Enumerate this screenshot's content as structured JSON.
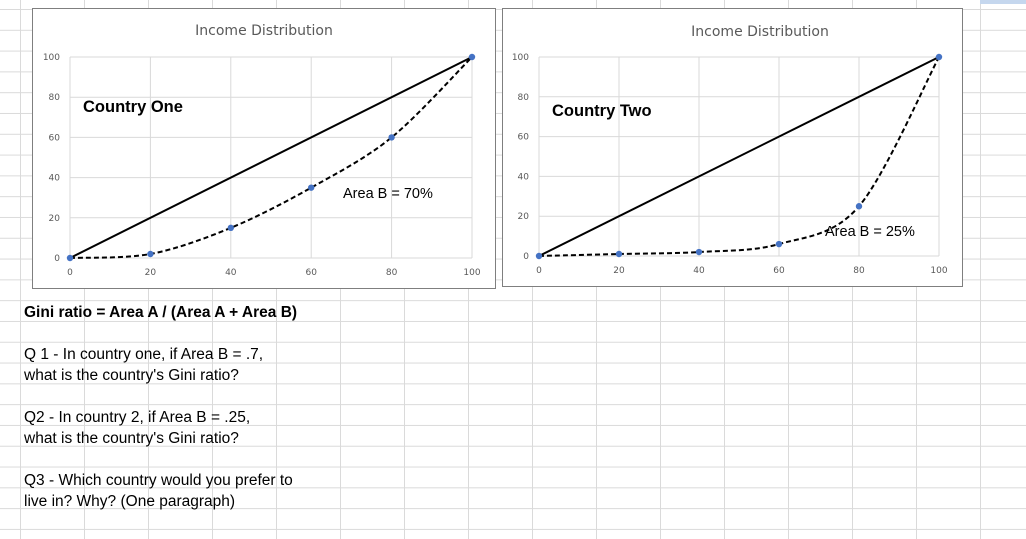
{
  "charts": [
    {
      "title": "Income Distribution",
      "country_label": "Country One",
      "area_label": "Area B = 70%"
    },
    {
      "title": "Income Distribution",
      "country_label": "Country Two",
      "area_label": "Area B = 25%"
    }
  ],
  "chart_data": [
    {
      "type": "line",
      "title": "Income Distribution",
      "x_ticks": [
        0,
        20,
        40,
        60,
        80,
        100
      ],
      "y_ticks": [
        0,
        20,
        40,
        60,
        80,
        100
      ],
      "xlim": [
        0,
        100
      ],
      "ylim": [
        0,
        100
      ],
      "grid": true,
      "series": [
        {
          "style": "solid",
          "color": "#000000",
          "x": [
            0,
            100
          ],
          "y": [
            0,
            100
          ]
        },
        {
          "style": "dashed",
          "color": "#000000",
          "marker_color": "#4472c4",
          "x": [
            0,
            20,
            40,
            60,
            80,
            100
          ],
          "y": [
            0,
            2,
            15,
            35,
            60,
            100
          ]
        }
      ],
      "annotations": [
        "Country One",
        "Area B = 70%"
      ]
    },
    {
      "type": "line",
      "title": "Income Distribution",
      "x_ticks": [
        0,
        20,
        40,
        60,
        80,
        100
      ],
      "y_ticks": [
        0,
        20,
        40,
        60,
        80,
        100
      ],
      "xlim": [
        0,
        100
      ],
      "ylim": [
        0,
        100
      ],
      "grid": true,
      "series": [
        {
          "style": "solid",
          "color": "#000000",
          "x": [
            0,
            100
          ],
          "y": [
            0,
            100
          ]
        },
        {
          "style": "dashed",
          "color": "#000000",
          "marker_color": "#4472c4",
          "x": [
            0,
            20,
            40,
            60,
            80,
            100
          ],
          "y": [
            0,
            1,
            2,
            6,
            25,
            100
          ]
        }
      ],
      "annotations": [
        "Country Two",
        "Area B = 25%"
      ]
    }
  ],
  "questions": {
    "gini": "Gini ratio = Area A / (Area A + Area B)",
    "q1_line1": "Q 1 - In country one, if Area B = .7,",
    "q1_line2": "what is the country's Gini ratio?",
    "q2_line1": "Q2 - In country 2, if Area B = .25,",
    "q2_line2": "what is the country's Gini ratio?",
    "q3_line1": "Q3 - Which country would you prefer to",
    "q3_line2": "live in? Why? (One paragraph)"
  }
}
